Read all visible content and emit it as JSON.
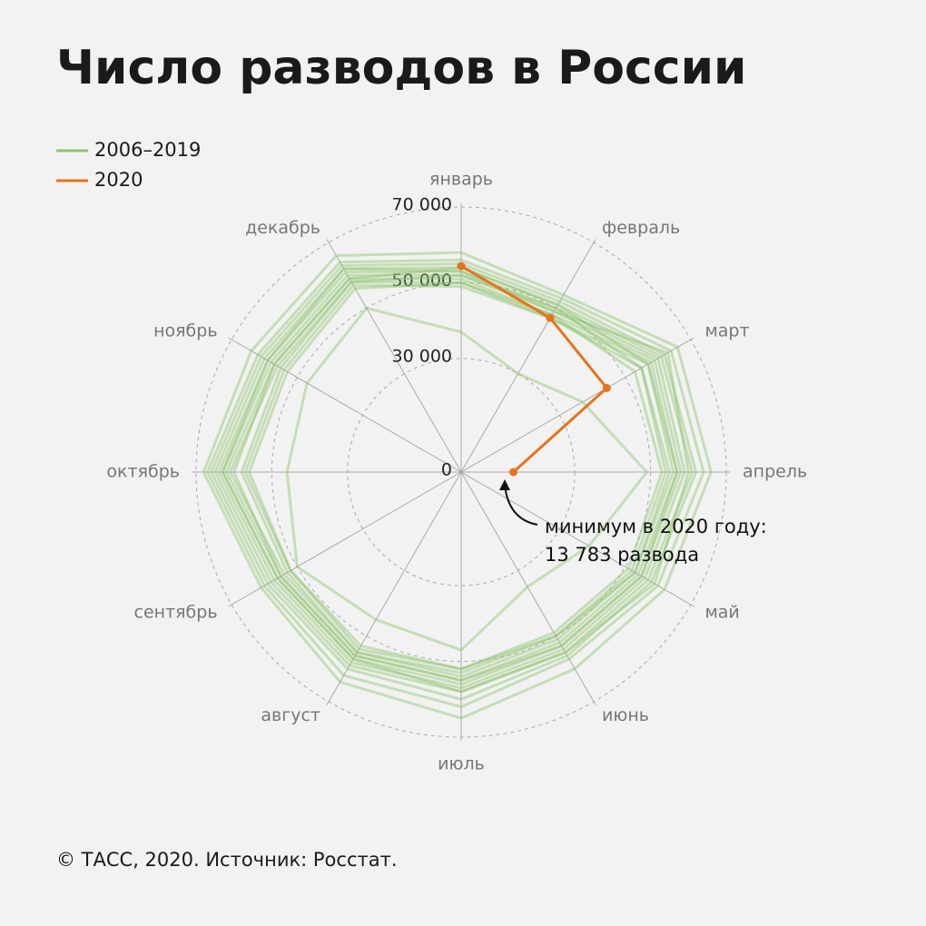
{
  "chart_data": {
    "type": "radar",
    "title": "Число разводов в России",
    "categories": [
      "январь",
      "февраль",
      "март",
      "апрель",
      "май",
      "июнь",
      "июль",
      "август",
      "сентябрь",
      "октябрь",
      "ноябрь",
      "декабрь"
    ],
    "series": [
      {
        "name": "2006–2019",
        "color": "#8fc46e",
        "lines": [
          [
            58000,
            54000,
            66000,
            66000,
            62000,
            60000,
            65000,
            64000,
            61000,
            68000,
            64000,
            66000
          ],
          [
            56000,
            53000,
            64000,
            64000,
            60000,
            57000,
            62000,
            62000,
            60000,
            67000,
            62000,
            64000
          ],
          [
            55000,
            52000,
            62000,
            62000,
            58000,
            56000,
            60000,
            60000,
            59000,
            66000,
            61000,
            63000
          ],
          [
            54000,
            51000,
            61000,
            61000,
            57000,
            55000,
            58000,
            59000,
            58000,
            65000,
            60000,
            62000
          ],
          [
            53000,
            50000,
            60000,
            59000,
            56000,
            54000,
            57000,
            58000,
            57000,
            64000,
            59000,
            61000
          ],
          [
            52000,
            49000,
            59000,
            58000,
            55000,
            53000,
            56000,
            57000,
            56000,
            63000,
            58000,
            60000
          ],
          [
            51000,
            48000,
            58000,
            57000,
            54000,
            52000,
            55000,
            56000,
            55000,
            62000,
            57000,
            59000
          ],
          [
            50000,
            47000,
            57000,
            56000,
            53000,
            51000,
            54000,
            55000,
            54000,
            61000,
            56000,
            58000
          ],
          [
            52000,
            50000,
            55000,
            55000,
            53000,
            50000,
            53000,
            55000,
            53000,
            58000,
            55000,
            58000
          ],
          [
            50000,
            48000,
            53000,
            53000,
            51000,
            49000,
            52000,
            53000,
            52000,
            56000,
            53000,
            56000
          ],
          [
            54000,
            51000,
            57000,
            57000,
            55000,
            53000,
            55000,
            56000,
            55000,
            60000,
            57000,
            59000
          ],
          [
            49000,
            47000,
            55000,
            54000,
            52000,
            50000,
            52000,
            54000,
            52000,
            57000,
            54000,
            57000
          ],
          [
            53000,
            49000,
            63000,
            60000,
            59000,
            55000,
            58000,
            57000,
            56000,
            63000,
            59000,
            62000
          ],
          [
            37000,
            30000,
            37000,
            49000,
            39000,
            35000,
            47000,
            45000,
            50000,
            46000,
            47000,
            50000
          ]
        ]
      },
      {
        "name": "2020",
        "color": "#e8731c",
        "values": [
          54400,
          47000,
          44400,
          13783,
          null,
          null,
          null,
          null,
          null,
          null,
          null,
          null
        ]
      }
    ],
    "ylim": [
      0,
      70000
    ],
    "yticks": [
      0,
      {
        "value": 30000,
        "label": "30 000"
      },
      {
        "value": 50000,
        "label": "50 000"
      },
      {
        "value": 70000,
        "label": "70 000"
      }
    ],
    "grid": true,
    "legend": "top-left",
    "annotation": [
      "минимум в 2020 году:",
      "13 783 развода"
    ],
    "footer": "© ТАСС, 2020. Источник: Росстат."
  }
}
